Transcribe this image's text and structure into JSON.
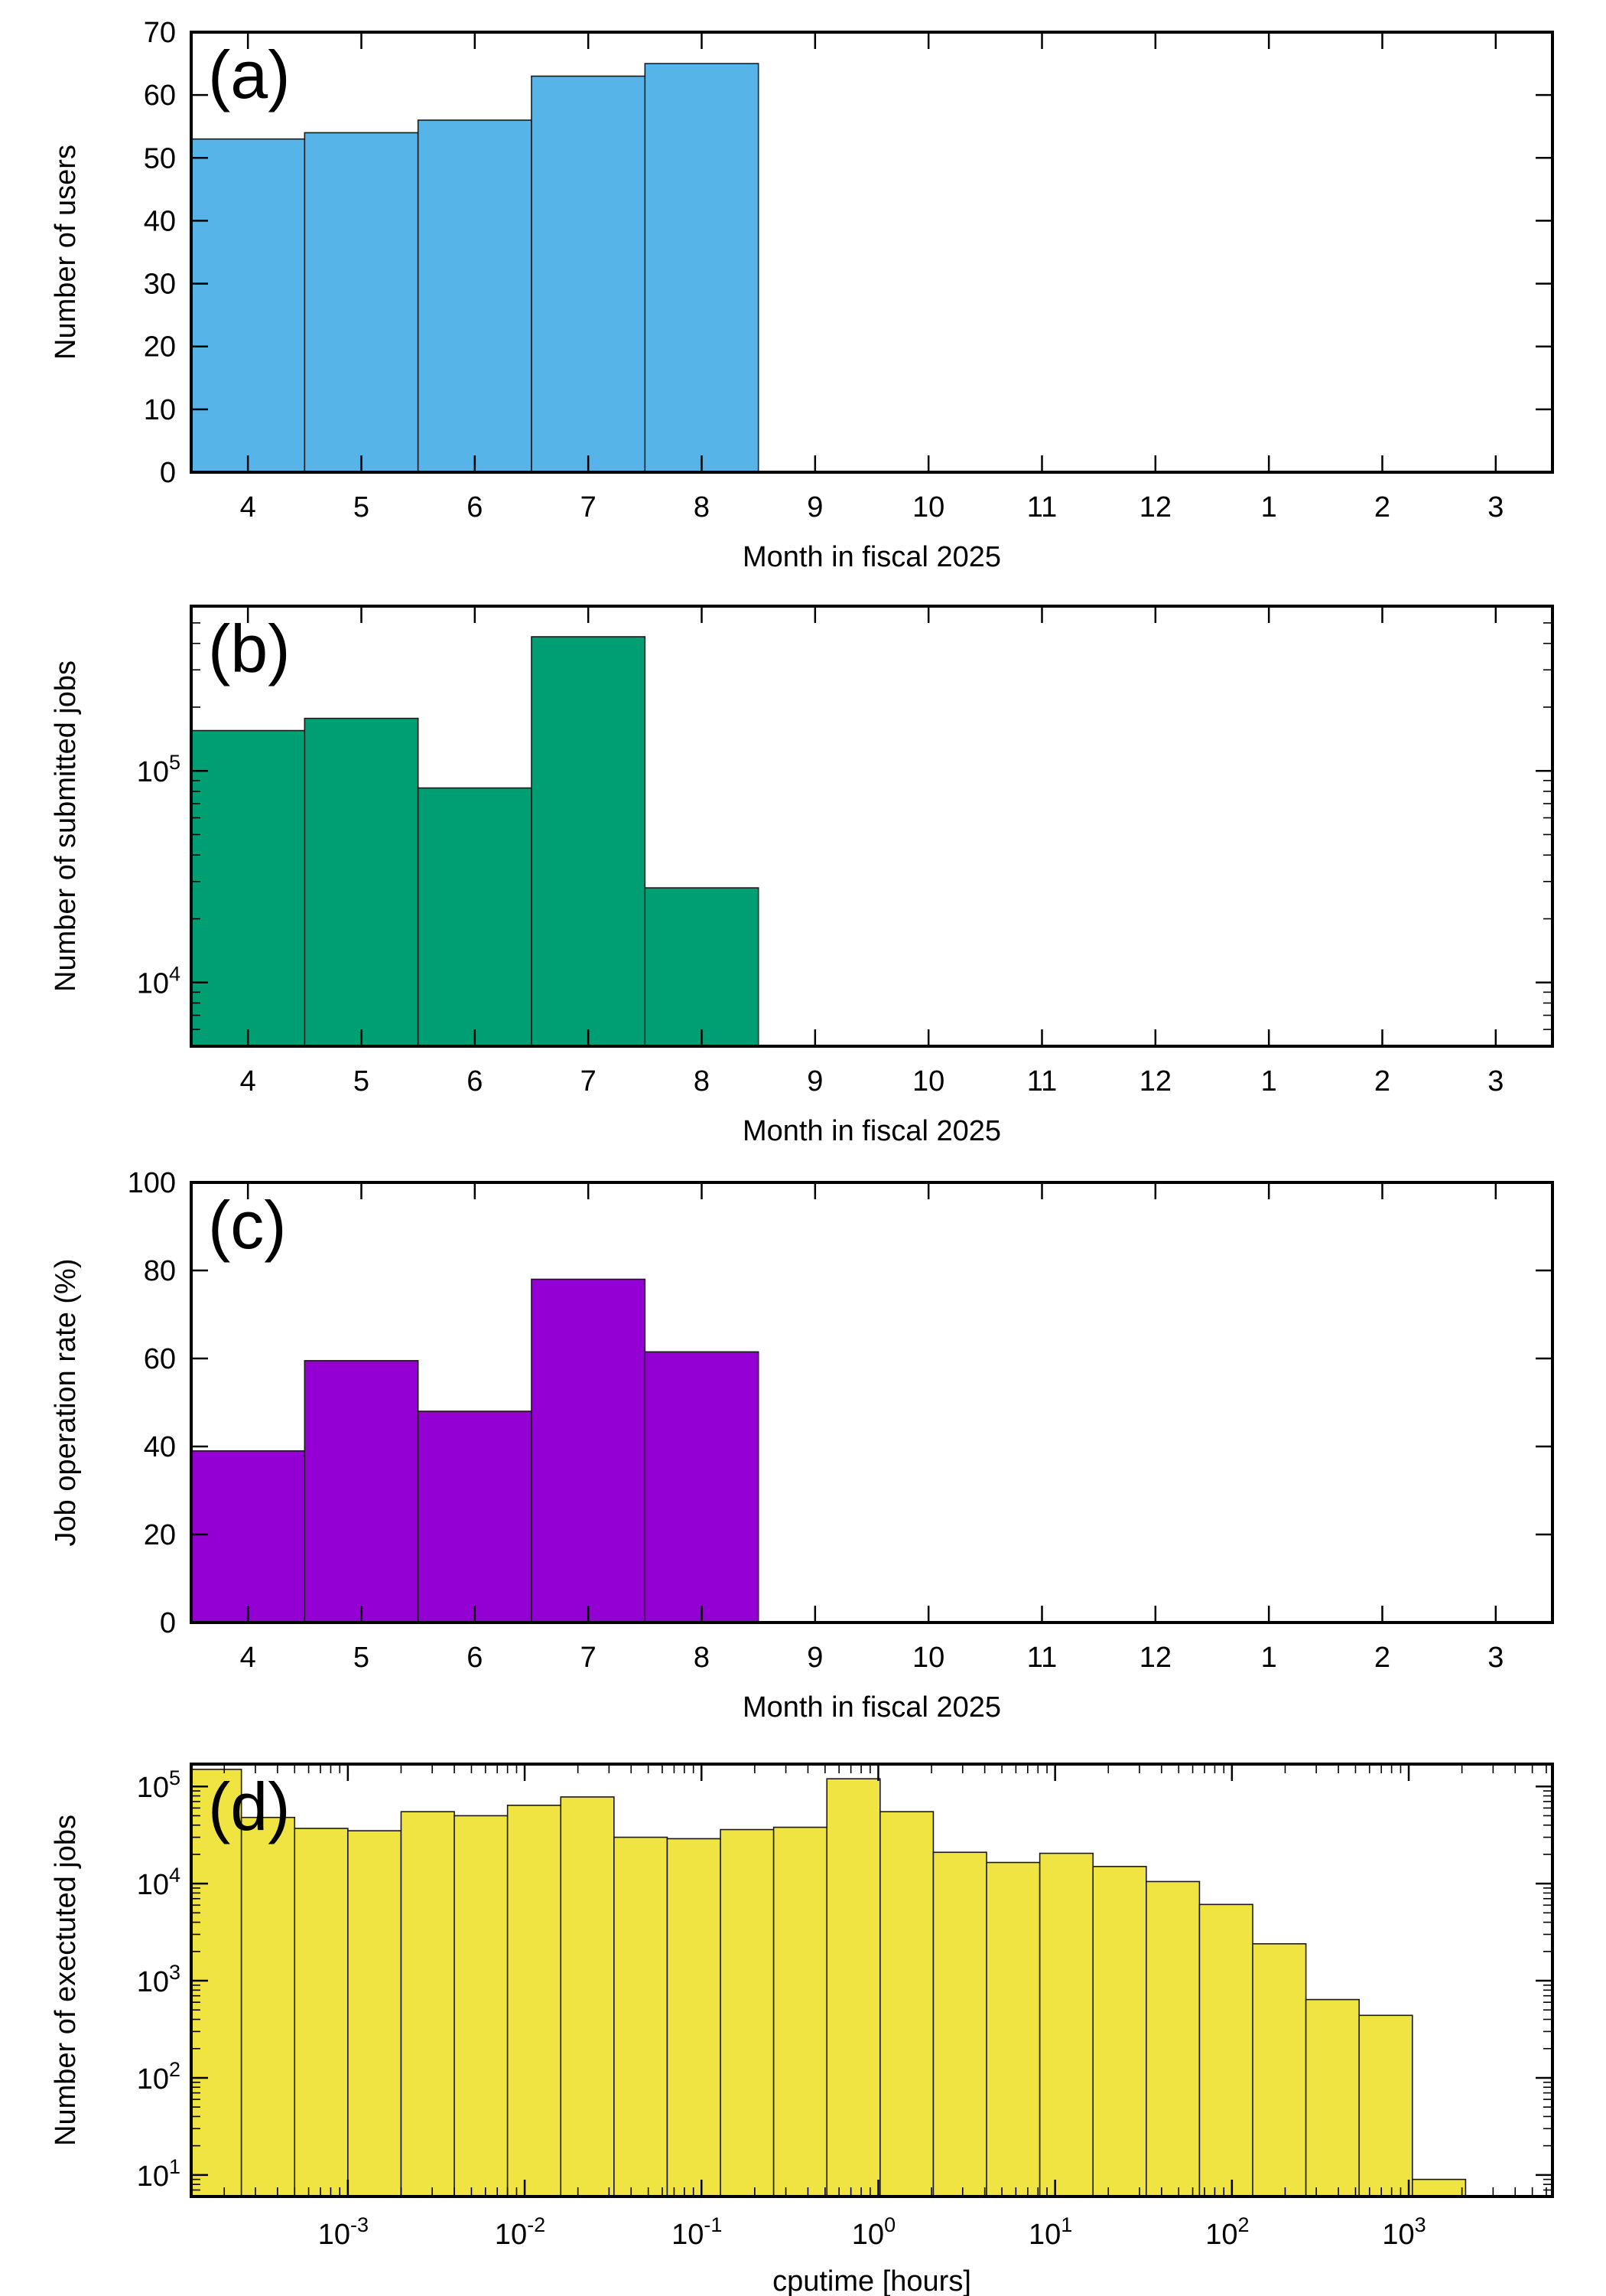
{
  "chart_data": [
    {
      "panel_label": "(a)",
      "type": "bar",
      "xlabel": "Month in fiscal 2025",
      "ylabel": "Number of users",
      "categories": [
        "4",
        "5",
        "6",
        "7",
        "8",
        "9",
        "10",
        "11",
        "12",
        "1",
        "2",
        "3"
      ],
      "values": [
        53,
        54,
        56,
        63,
        65,
        null,
        null,
        null,
        null,
        null,
        null,
        null
      ],
      "ylim": [
        0,
        70
      ],
      "yticks": [
        0,
        10,
        20,
        30,
        40,
        50,
        60,
        70
      ],
      "yscale": "linear",
      "color": "#56b4e9",
      "grid": false,
      "legend": "none"
    },
    {
      "panel_label": "(b)",
      "type": "bar",
      "xlabel": "Month in fiscal 2025",
      "ylabel": "Number of submitted jobs",
      "categories": [
        "4",
        "5",
        "6",
        "7",
        "8",
        "9",
        "10",
        "11",
        "12",
        "1",
        "2",
        "3"
      ],
      "values": [
        155000,
        177000,
        83000,
        430000,
        28000,
        null,
        null,
        null,
        null,
        null,
        null,
        null
      ],
      "ylim": [
        5000,
        600000
      ],
      "yticks": [
        10000,
        100000
      ],
      "ytick_labels": [
        {
          "base": "10",
          "exp": "4"
        },
        {
          "base": "10",
          "exp": "5"
        }
      ],
      "yscale": "log",
      "color": "#009e73",
      "grid": false,
      "legend": "none"
    },
    {
      "panel_label": "(c)",
      "type": "bar",
      "xlabel": "Month in fiscal 2025",
      "ylabel": "Job operation rate (%)",
      "categories": [
        "4",
        "5",
        "6",
        "7",
        "8",
        "9",
        "10",
        "11",
        "12",
        "1",
        "2",
        "3"
      ],
      "values": [
        39,
        59.5,
        48,
        78,
        61.5,
        null,
        null,
        null,
        null,
        null,
        null,
        null
      ],
      "ylim": [
        0,
        100
      ],
      "yticks": [
        0,
        20,
        40,
        60,
        80,
        100
      ],
      "yscale": "linear",
      "color": "#9400d3",
      "grid": false,
      "legend": "none"
    },
    {
      "panel_label": "(d)",
      "type": "bar",
      "xlabel": "cputime [hours]",
      "ylabel": "Number of exectuted jobs",
      "xscale": "log",
      "yscale": "log",
      "bin_edges_hours": [
        0.000125,
        0.00025,
        0.0005,
        0.001,
        0.002,
        0.004,
        0.008,
        0.016,
        0.032,
        0.064,
        0.128,
        0.256,
        0.512,
        1.024,
        2.048,
        4.096,
        8.192,
        16.384,
        32.768,
        65.536,
        131.072,
        262.144,
        524.288,
        1048.576,
        2097.152,
        4194.304
      ],
      "values": [
        150000,
        48000,
        37000,
        35000,
        55000,
        50000,
        64000,
        78000,
        30000,
        29000,
        36000,
        38000,
        120000,
        55000,
        21000,
        16500,
        20500,
        15000,
        10500,
        6100,
        2400,
        640,
        440,
        9,
        null
      ],
      "xlim": [
        0.00013,
        6500
      ],
      "ylim": [
        6,
        170000
      ],
      "xticks": [
        0.001,
        0.01,
        0.1,
        1,
        10,
        100,
        1000
      ],
      "xtick_labels": [
        {
          "base": "10",
          "exp": "-3"
        },
        {
          "base": "10",
          "exp": "-2"
        },
        {
          "base": "10",
          "exp": "-1"
        },
        {
          "base": "10",
          "exp": "0"
        },
        {
          "base": "10",
          "exp": "1"
        },
        {
          "base": "10",
          "exp": "2"
        },
        {
          "base": "10",
          "exp": "3"
        }
      ],
      "yticks": [
        10,
        100,
        1000,
        10000,
        100000
      ],
      "ytick_labels": [
        {
          "base": "10",
          "exp": "1"
        },
        {
          "base": "10",
          "exp": "2"
        },
        {
          "base": "10",
          "exp": "3"
        },
        {
          "base": "10",
          "exp": "4"
        },
        {
          "base": "10",
          "exp": "5"
        }
      ],
      "color": "#f0e442",
      "grid": false,
      "legend": "none"
    }
  ]
}
